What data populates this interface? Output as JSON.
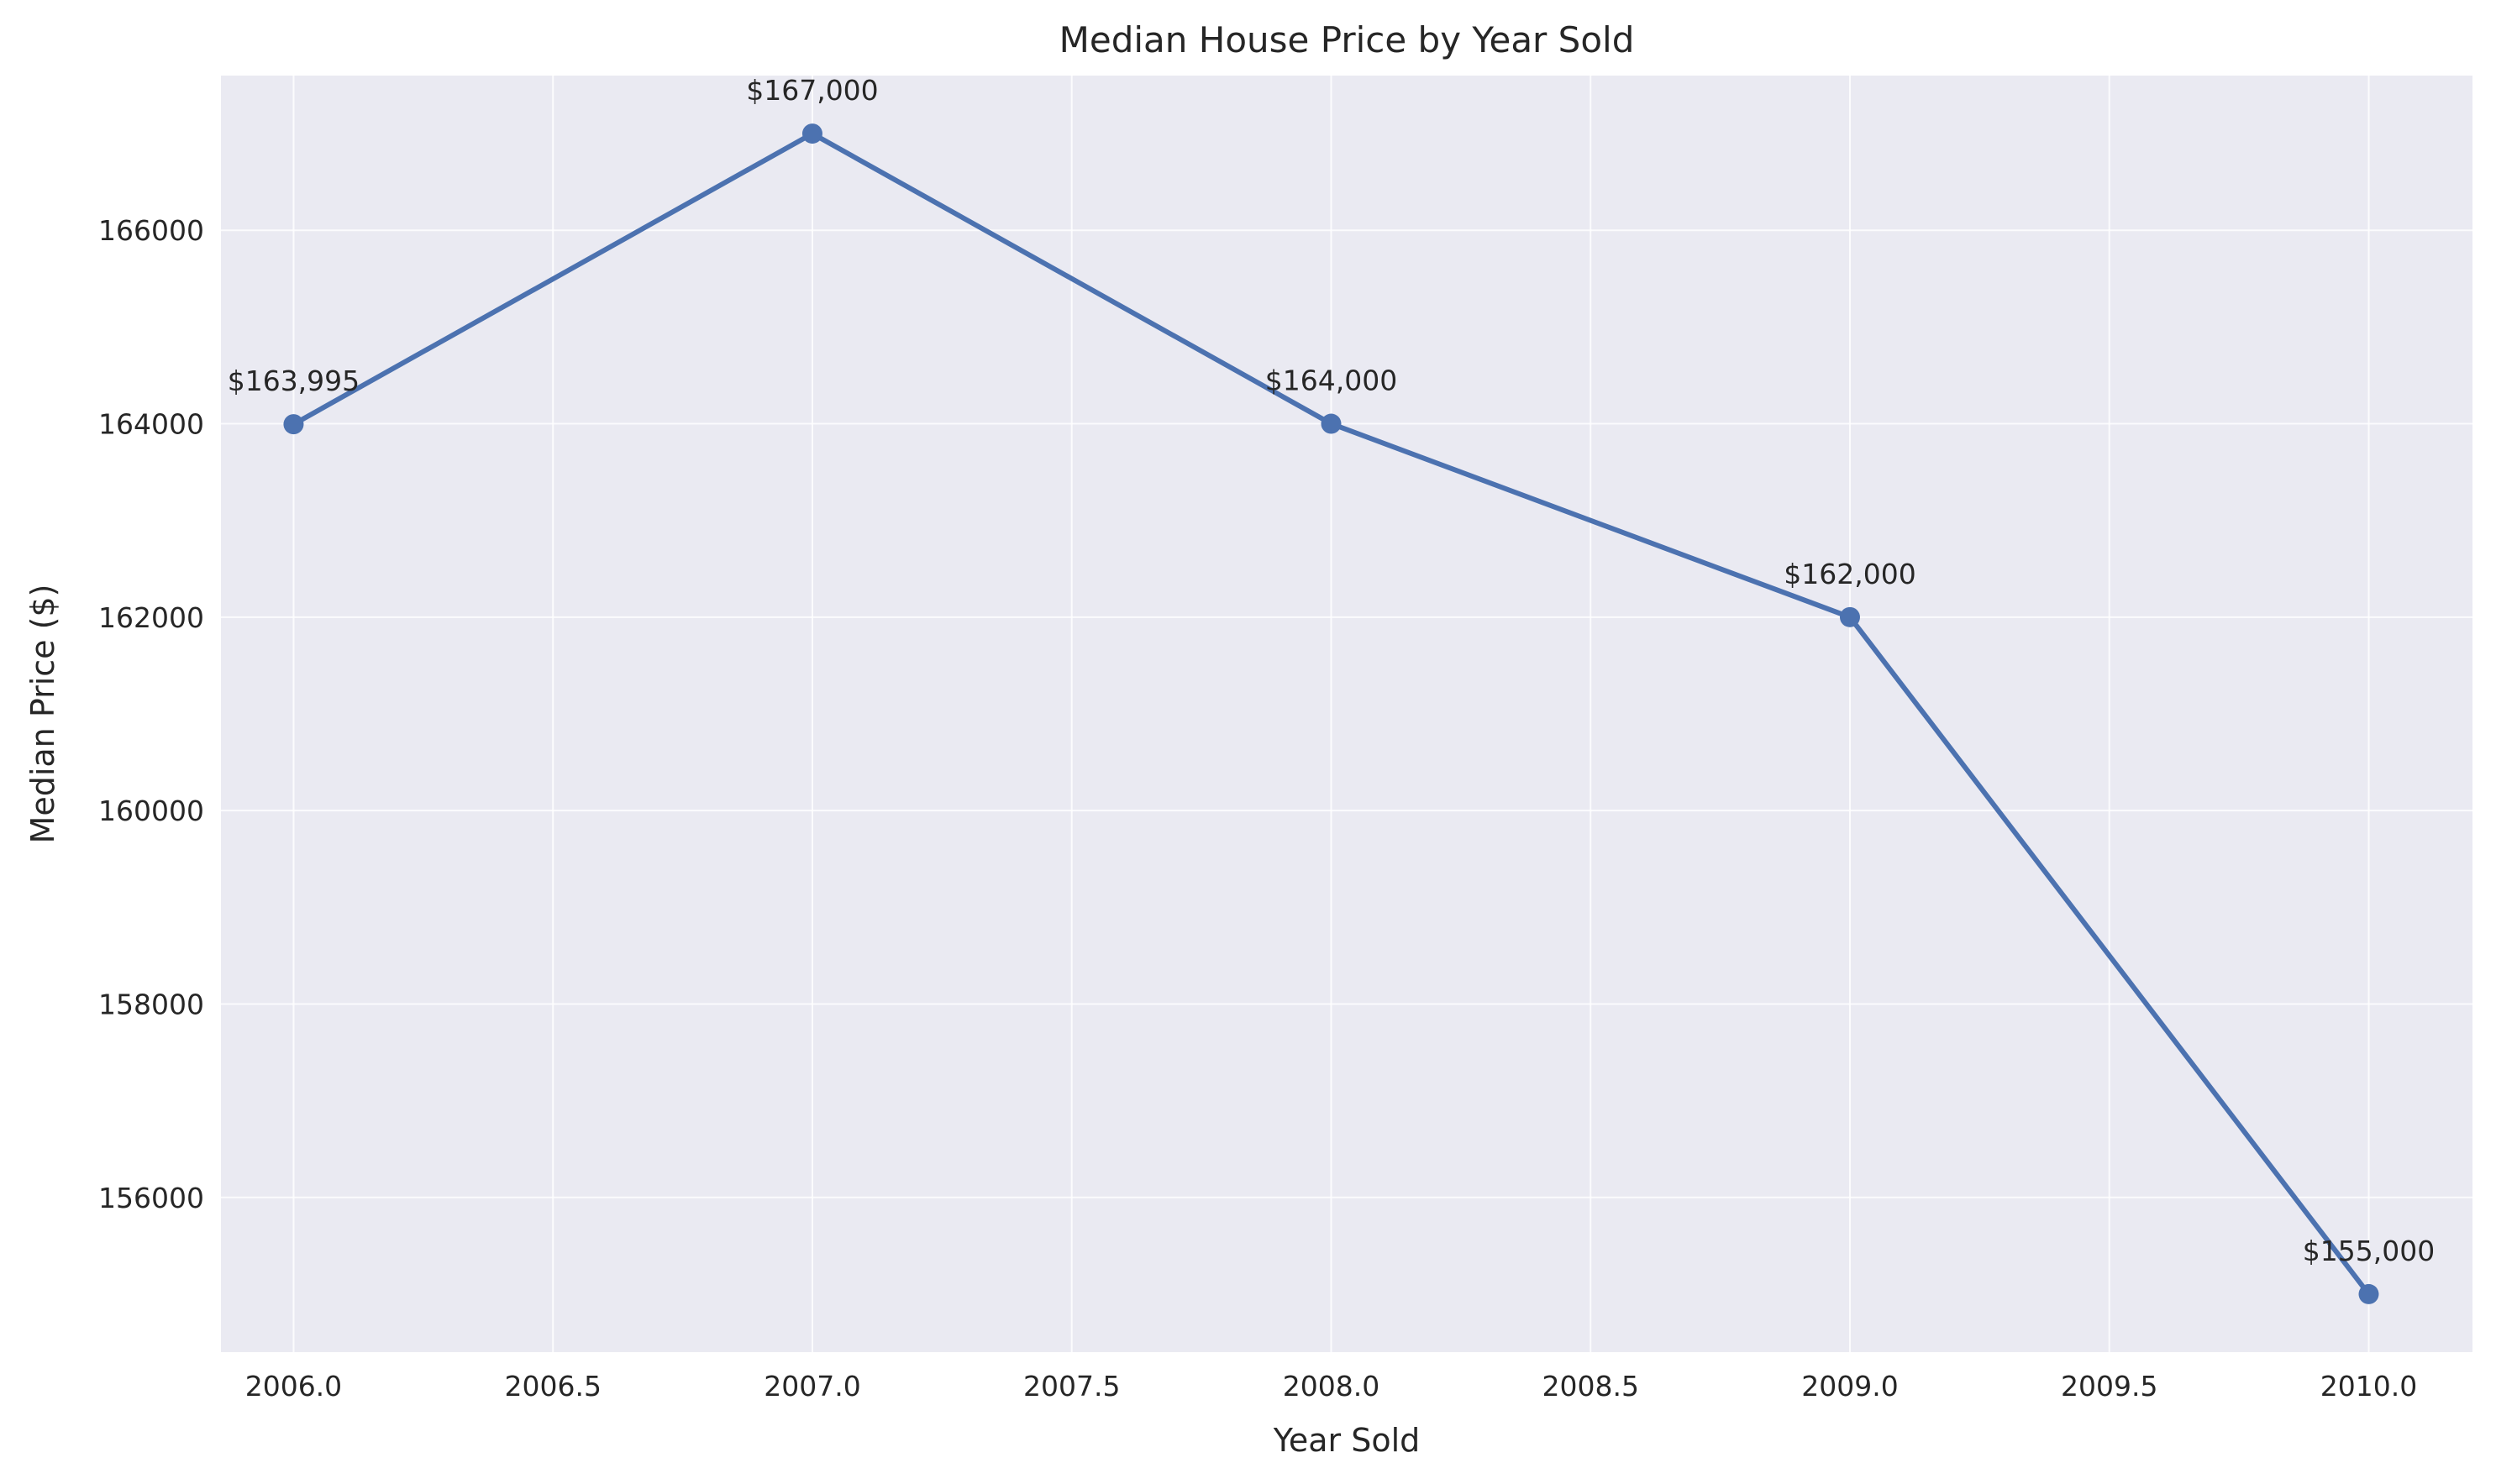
{
  "chart_data": {
    "type": "line",
    "title": "Median House Price by Year Sold",
    "xlabel": "Year Sold",
    "ylabel": "Median Price ($)",
    "xlim": [
      2005.86,
      2010.2
    ],
    "ylim": [
      154400,
      167600
    ],
    "x_ticks": [
      2006.0,
      2006.5,
      2007.0,
      2007.5,
      2008.0,
      2008.5,
      2009.0,
      2009.5,
      2010.0
    ],
    "x_tick_labels": [
      "2006.0",
      "2006.5",
      "2007.0",
      "2007.5",
      "2008.0",
      "2008.5",
      "2009.0",
      "2009.5",
      "2010.0"
    ],
    "y_ticks": [
      156000,
      158000,
      160000,
      162000,
      164000,
      166000
    ],
    "y_tick_labels": [
      "156000",
      "158000",
      "160000",
      "162000",
      "164000",
      "166000"
    ],
    "grid": true,
    "series": [
      {
        "x": [
          2006,
          2007,
          2008,
          2009,
          2010
        ],
        "y": [
          163995,
          167000,
          164000,
          162000,
          155000
        ],
        "labels": [
          "$163,995",
          "$167,000",
          "$164,000",
          "$162,000",
          "$155,000"
        ],
        "color": "#4C72B0"
      }
    ],
    "plot_background": "#EAEAF2"
  }
}
